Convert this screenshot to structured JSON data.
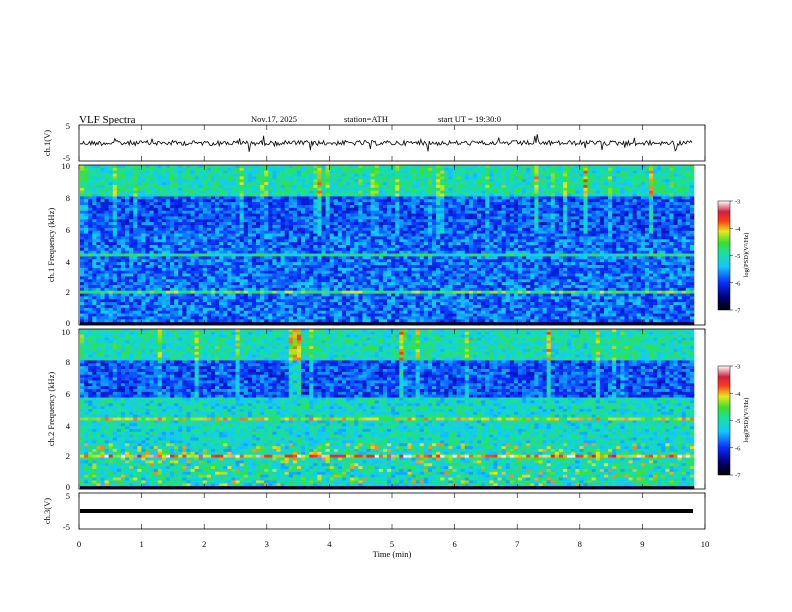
{
  "header": {
    "title": "VLF  Spectra",
    "date": "Nov.17, 2025",
    "station": "station=ATH",
    "start": "start  UT  =    19:30:0"
  },
  "colorbar": {
    "label": "log(PSD)(V²/Hz)",
    "ticks": [
      "-3",
      "-4",
      "-5",
      "-6",
      "-7"
    ]
  },
  "chart_data": [
    {
      "type": "line",
      "panel": "ch1-waveform",
      "ylabel": "ch.1(V)",
      "ylim": [
        -5,
        5
      ],
      "ytick_labels": [
        "5",
        "-5"
      ]
    },
    {
      "type": "heatmap",
      "panel": "ch1-spectrogram",
      "ylabel": "ch.1 Frequency (kHz)",
      "ylim": [
        0,
        10
      ],
      "ytick_labels": [
        "10",
        "8",
        "6",
        "4",
        "2",
        "0"
      ],
      "colorbar": "log(PSD)(V²/Hz)",
      "color_range": [
        -7,
        -3
      ]
    },
    {
      "type": "heatmap",
      "panel": "ch2-spectrogram",
      "ylabel": "ch.2 Frequency (kHz)",
      "ylim": [
        0,
        10
      ],
      "ytick_labels": [
        "10",
        "8",
        "6",
        "4",
        "2",
        "0"
      ],
      "colorbar": "log(PSD)(V²/Hz)",
      "color_range": [
        -7,
        -3
      ]
    },
    {
      "type": "line",
      "panel": "ch3-waveform",
      "ylabel": "ch.3(V)",
      "ylim": [
        -5,
        5
      ],
      "ytick_labels": [
        "5",
        "-5"
      ]
    }
  ],
  "xaxis": {
    "label": "Time (min)",
    "range": [
      0,
      10
    ],
    "ticks": [
      "0",
      "1",
      "2",
      "3",
      "4",
      "5",
      "6",
      "7",
      "8",
      "9",
      "10"
    ]
  }
}
